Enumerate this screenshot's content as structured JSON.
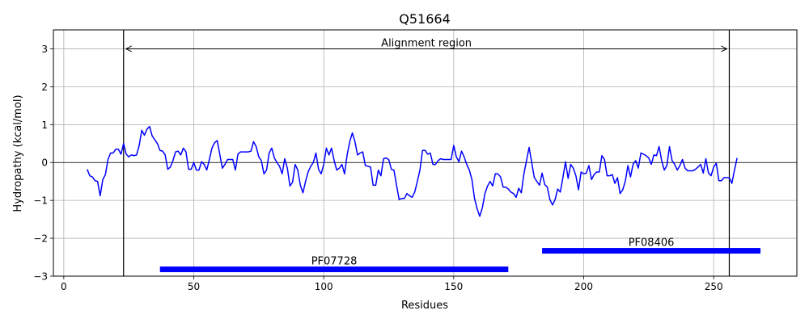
{
  "chart_data": {
    "type": "line",
    "title": "Q51664",
    "xlabel": "Residues",
    "ylabel": "Hydropathy (kcal/mol)",
    "xlim": [
      -4,
      282
    ],
    "ylim": [
      -3,
      3.5
    ],
    "xticks": [
      0,
      50,
      100,
      150,
      200,
      250
    ],
    "yticks": [
      -3,
      -2,
      -1,
      0,
      1,
      2,
      3
    ],
    "grid": true,
    "line_color": "#0000ff",
    "domain_color": "#0000ff",
    "series": [
      {
        "x": [
          9,
          10,
          11,
          12,
          13,
          14,
          15,
          16,
          17,
          18,
          19,
          20,
          21,
          22,
          23,
          24,
          25,
          26,
          27,
          28,
          29,
          30,
          31,
          32,
          33,
          34,
          35,
          36,
          37,
          38,
          39,
          40,
          41,
          42,
          43,
          44,
          45,
          46,
          47,
          48,
          49,
          50,
          51,
          52,
          53,
          54,
          55,
          56,
          57,
          58,
          59,
          60,
          61,
          62,
          63,
          64,
          65,
          66,
          67,
          68,
          69,
          70,
          71,
          72,
          73,
          74,
          75,
          76,
          77,
          78,
          79,
          80,
          81,
          82,
          83,
          84,
          85,
          86,
          87,
          88,
          89,
          90,
          91,
          92,
          93,
          94,
          95,
          96,
          97,
          98,
          99,
          100,
          101,
          102,
          103,
          104,
          105,
          106,
          107,
          108,
          109,
          110,
          111,
          112,
          113,
          114,
          115,
          116,
          117,
          118,
          119,
          120,
          121,
          122,
          123,
          124,
          125,
          126,
          127,
          128,
          129,
          130,
          131,
          132,
          133,
          134,
          135,
          136,
          137,
          138,
          139,
          140,
          141,
          142,
          143,
          144,
          145,
          146,
          147,
          148,
          149,
          150,
          151,
          152,
          153,
          154,
          155,
          156,
          157,
          158,
          159,
          160,
          161,
          162,
          163,
          164,
          165,
          166,
          167,
          168,
          169,
          170,
          171,
          172,
          173,
          174,
          175,
          176,
          177,
          178,
          179,
          180,
          181,
          182,
          183,
          184,
          185,
          186,
          187,
          188,
          189,
          190,
          191,
          192,
          193,
          194,
          195,
          196,
          197,
          198,
          199,
          200,
          201,
          202,
          203,
          204,
          205,
          206,
          207,
          208,
          209,
          210,
          211,
          212,
          213,
          214,
          215,
          216,
          217,
          218,
          219,
          220,
          221,
          222,
          223,
          224,
          225,
          226,
          227,
          228,
          229,
          230,
          231,
          232,
          233,
          234,
          235,
          236,
          237,
          238,
          239,
          240,
          241,
          242,
          243,
          244,
          245,
          246,
          247,
          248,
          249,
          250,
          251,
          252,
          253,
          254,
          255,
          256,
          257,
          258,
          259
        ],
        "y": [
          -0.18,
          -0.35,
          -0.38,
          -0.48,
          -0.5,
          -0.88,
          -0.45,
          -0.32,
          0.08,
          0.25,
          0.25,
          0.35,
          0.35,
          0.22,
          0.5,
          0.22,
          0.15,
          0.2,
          0.18,
          0.2,
          0.45,
          0.85,
          0.72,
          0.88,
          0.95,
          0.7,
          0.6,
          0.5,
          0.32,
          0.3,
          0.2,
          -0.18,
          -0.12,
          0.05,
          0.28,
          0.3,
          0.2,
          0.38,
          0.28,
          -0.18,
          -0.18,
          0.0,
          -0.2,
          -0.2,
          0.02,
          -0.05,
          -0.2,
          0.08,
          0.38,
          0.52,
          0.58,
          0.22,
          -0.15,
          -0.05,
          0.08,
          0.08,
          0.08,
          -0.2,
          0.22,
          0.28,
          0.28,
          0.28,
          0.28,
          0.3,
          0.55,
          0.42,
          0.15,
          0.05,
          -0.3,
          -0.2,
          0.25,
          0.38,
          0.12,
          0.0,
          -0.1,
          -0.3,
          0.1,
          -0.15,
          -0.62,
          -0.52,
          -0.05,
          -0.2,
          -0.6,
          -0.8,
          -0.5,
          -0.25,
          -0.1,
          0.0,
          0.25,
          -0.18,
          -0.3,
          -0.05,
          0.38,
          0.2,
          0.38,
          0.05,
          -0.2,
          -0.15,
          -0.05,
          -0.3,
          0.2,
          0.55,
          0.78,
          0.55,
          0.2,
          0.25,
          0.28,
          -0.08,
          -0.1,
          -0.12,
          -0.6,
          -0.6,
          -0.2,
          -0.35,
          0.1,
          0.12,
          0.08,
          -0.18,
          -0.2,
          -0.6,
          -0.98,
          -0.95,
          -0.95,
          -0.82,
          -0.88,
          -0.92,
          -0.78,
          -0.5,
          -0.2,
          0.32,
          0.32,
          0.22,
          0.25,
          -0.05,
          -0.05,
          0.05,
          0.1,
          0.08,
          0.08,
          0.08,
          0.08,
          0.45,
          0.15,
          0.02,
          0.3,
          0.15,
          -0.05,
          -0.2,
          -0.45,
          -0.95,
          -1.22,
          -1.42,
          -1.2,
          -0.82,
          -0.62,
          -0.5,
          -0.62,
          -0.3,
          -0.3,
          -0.38,
          -0.65,
          -0.65,
          -0.7,
          -0.78,
          -0.82,
          -0.92,
          -0.68,
          -0.8,
          -0.3,
          0.05,
          0.4,
          0.0,
          -0.4,
          -0.5,
          -0.6,
          -0.28,
          -0.58,
          -0.65,
          -0.98,
          -1.12,
          -0.98,
          -0.7,
          -0.78,
          -0.4,
          0.02,
          -0.42,
          -0.05,
          -0.15,
          -0.35,
          -0.72,
          -0.25,
          -0.3,
          -0.28,
          -0.08,
          -0.45,
          -0.32,
          -0.25,
          -0.25,
          0.18,
          0.08,
          -0.35,
          -0.35,
          -0.32,
          -0.55,
          -0.4,
          -0.82,
          -0.72,
          -0.5,
          -0.08,
          -0.38,
          -0.05,
          0.05,
          -0.15,
          0.25,
          0.22,
          0.18,
          0.12,
          -0.05,
          0.2,
          0.18,
          0.42,
          0.05,
          -0.2,
          -0.08,
          0.42,
          0.05,
          -0.05,
          -0.2,
          -0.08,
          0.08,
          -0.15,
          -0.22,
          -0.22,
          -0.22,
          -0.18,
          -0.12,
          -0.05,
          -0.28,
          0.1,
          -0.28,
          -0.35,
          -0.12,
          -0.02,
          -0.48,
          -0.48,
          -0.4,
          -0.4,
          -0.4,
          -0.55,
          -0.2,
          0.12
        ]
      }
    ],
    "alignment_region": {
      "label": "Alignment region",
      "start": 23,
      "end": 256,
      "label_y": 3.15,
      "arrow_y": 3.0
    },
    "domains": [
      {
        "name": "PF07728",
        "start": 37,
        "end": 171,
        "y": -2.82
      },
      {
        "name": "PF08406",
        "start": 184,
        "end": 268,
        "y": -2.33
      }
    ]
  }
}
